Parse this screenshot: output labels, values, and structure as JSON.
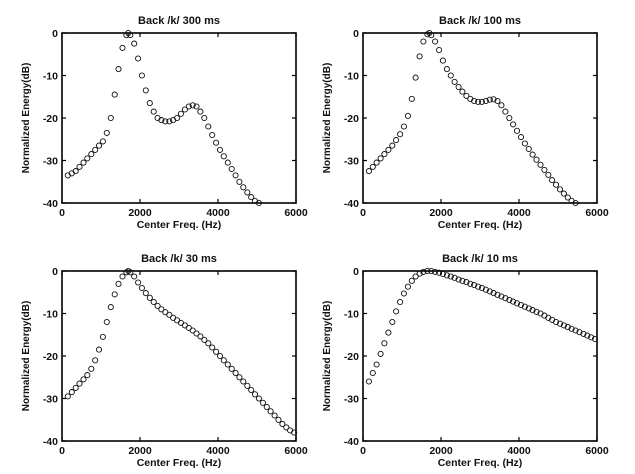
{
  "chart_data": [
    {
      "type": "scatter",
      "title": "Back /k/ 300 ms",
      "xlabel": "Center Freq. (Hz)",
      "ylabel": "Normalized Energy(dB)",
      "xlim": [
        0,
        6000
      ],
      "ylim": [
        -40,
        0
      ],
      "xticks": [
        "0",
        "2000",
        "4000",
        "6000"
      ],
      "yticks": [
        "0",
        "-10",
        "-20",
        "-30",
        "-40"
      ],
      "marker": "open-circle",
      "points": [
        [
          150,
          -33.5
        ],
        [
          250,
          -33
        ],
        [
          350,
          -32.5
        ],
        [
          450,
          -31.5
        ],
        [
          550,
          -30.5
        ],
        [
          650,
          -29.5
        ],
        [
          750,
          -28.5
        ],
        [
          850,
          -27.5
        ],
        [
          950,
          -26.5
        ],
        [
          1050,
          -25.5
        ],
        [
          1150,
          -23.5
        ],
        [
          1250,
          -20
        ],
        [
          1350,
          -14.5
        ],
        [
          1450,
          -8.5
        ],
        [
          1550,
          -3.5
        ],
        [
          1650,
          -0.5
        ],
        [
          1700,
          0
        ],
        [
          1750,
          -0.5
        ],
        [
          1850,
          -2.5
        ],
        [
          1950,
          -6
        ],
        [
          2050,
          -10
        ],
        [
          2150,
          -13.5
        ],
        [
          2250,
          -16.5
        ],
        [
          2350,
          -18.5
        ],
        [
          2450,
          -20
        ],
        [
          2550,
          -20.5
        ],
        [
          2650,
          -20.8
        ],
        [
          2750,
          -20.8
        ],
        [
          2850,
          -20.5
        ],
        [
          2950,
          -20
        ],
        [
          3050,
          -19
        ],
        [
          3150,
          -18
        ],
        [
          3250,
          -17.3
        ],
        [
          3350,
          -17
        ],
        [
          3450,
          -17.3
        ],
        [
          3550,
          -18.5
        ],
        [
          3650,
          -20
        ],
        [
          3750,
          -22
        ],
        [
          3850,
          -24
        ],
        [
          3950,
          -25.8
        ],
        [
          4050,
          -27.5
        ],
        [
          4150,
          -29
        ],
        [
          4250,
          -30.5
        ],
        [
          4350,
          -32
        ],
        [
          4450,
          -33.5
        ],
        [
          4550,
          -35
        ],
        [
          4650,
          -36.3
        ],
        [
          4750,
          -37.5
        ],
        [
          4850,
          -38.6
        ],
        [
          4950,
          -39.5
        ],
        [
          5050,
          -40
        ]
      ]
    },
    {
      "type": "scatter",
      "title": "Back /k/ 100 ms",
      "xlabel": "Center Freq. (Hz)",
      "ylabel": "Normalized Energy(dB)",
      "xlim": [
        0,
        6000
      ],
      "ylim": [
        -40,
        0
      ],
      "xticks": [
        "0",
        "2000",
        "4000",
        "6000"
      ],
      "yticks": [
        "0",
        "-10",
        "-20",
        "-30",
        "-40"
      ],
      "marker": "open-circle",
      "points": [
        [
          150,
          -32.5
        ],
        [
          250,
          -31.5
        ],
        [
          350,
          -30.5
        ],
        [
          450,
          -29.5
        ],
        [
          550,
          -28.5
        ],
        [
          650,
          -27.5
        ],
        [
          750,
          -26.5
        ],
        [
          850,
          -25.2
        ],
        [
          950,
          -23.8
        ],
        [
          1050,
          -22
        ],
        [
          1150,
          -19.5
        ],
        [
          1250,
          -15.5
        ],
        [
          1350,
          -10.5
        ],
        [
          1450,
          -5.5
        ],
        [
          1550,
          -2
        ],
        [
          1650,
          -0.3
        ],
        [
          1700,
          0
        ],
        [
          1750,
          -0.5
        ],
        [
          1850,
          -2
        ],
        [
          1950,
          -4
        ],
        [
          2050,
          -6.5
        ],
        [
          2150,
          -8.5
        ],
        [
          2250,
          -10
        ],
        [
          2350,
          -11.5
        ],
        [
          2450,
          -12.7
        ],
        [
          2550,
          -13.8
        ],
        [
          2650,
          -14.8
        ],
        [
          2750,
          -15.5
        ],
        [
          2850,
          -16
        ],
        [
          2950,
          -16.2
        ],
        [
          3050,
          -16.2
        ],
        [
          3150,
          -16
        ],
        [
          3250,
          -15.7
        ],
        [
          3350,
          -15.6
        ],
        [
          3450,
          -16
        ],
        [
          3550,
          -17
        ],
        [
          3650,
          -18.5
        ],
        [
          3750,
          -20
        ],
        [
          3850,
          -21.5
        ],
        [
          3950,
          -23
        ],
        [
          4050,
          -24.5
        ],
        [
          4150,
          -26
        ],
        [
          4250,
          -27.3
        ],
        [
          4350,
          -28.6
        ],
        [
          4450,
          -29.8
        ],
        [
          4550,
          -31
        ],
        [
          4650,
          -32.2
        ],
        [
          4750,
          -33.4
        ],
        [
          4850,
          -34.6
        ],
        [
          4950,
          -35.7
        ],
        [
          5050,
          -36.8
        ],
        [
          5150,
          -37.8
        ],
        [
          5250,
          -38.7
        ],
        [
          5350,
          -39.5
        ],
        [
          5450,
          -40
        ]
      ]
    },
    {
      "type": "scatter",
      "title": "Back /k/ 30 ms",
      "xlabel": "Center Freq. (Hz)",
      "ylabel": "Normalized Energy(dB)",
      "xlim": [
        0,
        6000
      ],
      "ylim": [
        -40,
        0
      ],
      "xticks": [
        "0",
        "2000",
        "4000",
        "6000"
      ],
      "yticks": [
        "0",
        "-10",
        "-20",
        "-30",
        "-40"
      ],
      "marker": "open-circle",
      "points": [
        [
          150,
          -29.5
        ],
        [
          250,
          -28.5
        ],
        [
          350,
          -27.5
        ],
        [
          450,
          -26.5
        ],
        [
          550,
          -25.5
        ],
        [
          650,
          -24.5
        ],
        [
          750,
          -23
        ],
        [
          850,
          -21
        ],
        [
          950,
          -18.5
        ],
        [
          1050,
          -15.5
        ],
        [
          1150,
          -12
        ],
        [
          1250,
          -8.5
        ],
        [
          1350,
          -5.5
        ],
        [
          1450,
          -3
        ],
        [
          1550,
          -1.3
        ],
        [
          1650,
          -0.3
        ],
        [
          1700,
          0
        ],
        [
          1750,
          -0.3
        ],
        [
          1850,
          -1.3
        ],
        [
          1950,
          -2.7
        ],
        [
          2050,
          -4
        ],
        [
          2150,
          -5.2
        ],
        [
          2250,
          -6.3
        ],
        [
          2350,
          -7.3
        ],
        [
          2450,
          -8.2
        ],
        [
          2550,
          -9
        ],
        [
          2650,
          -9.7
        ],
        [
          2750,
          -10.3
        ],
        [
          2850,
          -11
        ],
        [
          2950,
          -11.6
        ],
        [
          3050,
          -12.2
        ],
        [
          3150,
          -12.8
        ],
        [
          3250,
          -13.4
        ],
        [
          3350,
          -14
        ],
        [
          3450,
          -14.7
        ],
        [
          3550,
          -15.4
        ],
        [
          3650,
          -16.2
        ],
        [
          3750,
          -17
        ],
        [
          3850,
          -18
        ],
        [
          3950,
          -19
        ],
        [
          4050,
          -20
        ],
        [
          4150,
          -21
        ],
        [
          4250,
          -22
        ],
        [
          4350,
          -23
        ],
        [
          4450,
          -24
        ],
        [
          4550,
          -25
        ],
        [
          4650,
          -26
        ],
        [
          4750,
          -27
        ],
        [
          4850,
          -28
        ],
        [
          4950,
          -29
        ],
        [
          5050,
          -30
        ],
        [
          5150,
          -31
        ],
        [
          5250,
          -32
        ],
        [
          5350,
          -33
        ],
        [
          5450,
          -34
        ],
        [
          5550,
          -35
        ],
        [
          5650,
          -36
        ],
        [
          5750,
          -36.8
        ],
        [
          5850,
          -37.5
        ],
        [
          5950,
          -38
        ]
      ]
    },
    {
      "type": "scatter",
      "title": "Back /k/ 10 ms",
      "xlabel": "Center Freq. (Hz)",
      "ylabel": "Normalized Energy(dB)",
      "xlim": [
        0,
        6000
      ],
      "ylim": [
        -40,
        0
      ],
      "xticks": [
        "0",
        "2000",
        "4000",
        "6000"
      ],
      "yticks": [
        "0",
        "-10",
        "-20",
        "-30",
        "-40"
      ],
      "marker": "open-circle",
      "points": [
        [
          150,
          -26
        ],
        [
          250,
          -24
        ],
        [
          350,
          -22
        ],
        [
          450,
          -19.5
        ],
        [
          550,
          -17
        ],
        [
          650,
          -14.5
        ],
        [
          750,
          -12
        ],
        [
          850,
          -9.5
        ],
        [
          950,
          -7.3
        ],
        [
          1050,
          -5.3
        ],
        [
          1150,
          -3.7
        ],
        [
          1250,
          -2.3
        ],
        [
          1350,
          -1.3
        ],
        [
          1450,
          -0.6
        ],
        [
          1550,
          -0.2
        ],
        [
          1650,
          0
        ],
        [
          1750,
          0
        ],
        [
          1850,
          -0.2
        ],
        [
          1950,
          -0.4
        ],
        [
          2050,
          -0.7
        ],
        [
          2150,
          -1
        ],
        [
          2250,
          -1.3
        ],
        [
          2350,
          -1.6
        ],
        [
          2450,
          -2
        ],
        [
          2550,
          -2.3
        ],
        [
          2650,
          -2.6
        ],
        [
          2750,
          -3
        ],
        [
          2850,
          -3.3
        ],
        [
          2950,
          -3.7
        ],
        [
          3050,
          -4
        ],
        [
          3150,
          -4.4
        ],
        [
          3250,
          -4.8
        ],
        [
          3350,
          -5.2
        ],
        [
          3450,
          -5.6
        ],
        [
          3550,
          -6
        ],
        [
          3650,
          -6.4
        ],
        [
          3750,
          -6.8
        ],
        [
          3850,
          -7.2
        ],
        [
          3950,
          -7.6
        ],
        [
          4050,
          -8
        ],
        [
          4150,
          -8.4
        ],
        [
          4250,
          -8.8
        ],
        [
          4350,
          -9.2
        ],
        [
          4450,
          -9.6
        ],
        [
          4550,
          -10
        ],
        [
          4650,
          -10.5
        ],
        [
          4750,
          -11
        ],
        [
          4850,
          -11.5
        ],
        [
          4950,
          -12
        ],
        [
          5050,
          -12.4
        ],
        [
          5150,
          -12.8
        ],
        [
          5250,
          -13.2
        ],
        [
          5350,
          -13.6
        ],
        [
          5450,
          -14
        ],
        [
          5550,
          -14.4
        ],
        [
          5650,
          -14.8
        ],
        [
          5750,
          -15.2
        ],
        [
          5850,
          -15.6
        ],
        [
          5950,
          -16
        ]
      ]
    }
  ]
}
